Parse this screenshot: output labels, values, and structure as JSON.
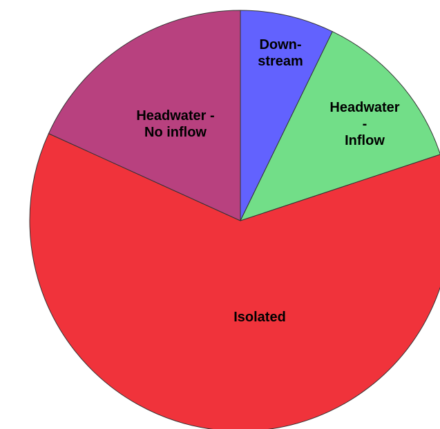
{
  "chart_data": {
    "type": "pie",
    "categories": [
      "Down-\nstream",
      "Headwater -\nInflow",
      "Isolated",
      "Headwater -\nNo inflow"
    ],
    "values": [
      7.2,
      12.7,
      61.9,
      18.2
    ],
    "colors": [
      "#6262fe",
      "#72de88",
      "#f0333b",
      "#b8417f"
    ]
  }
}
